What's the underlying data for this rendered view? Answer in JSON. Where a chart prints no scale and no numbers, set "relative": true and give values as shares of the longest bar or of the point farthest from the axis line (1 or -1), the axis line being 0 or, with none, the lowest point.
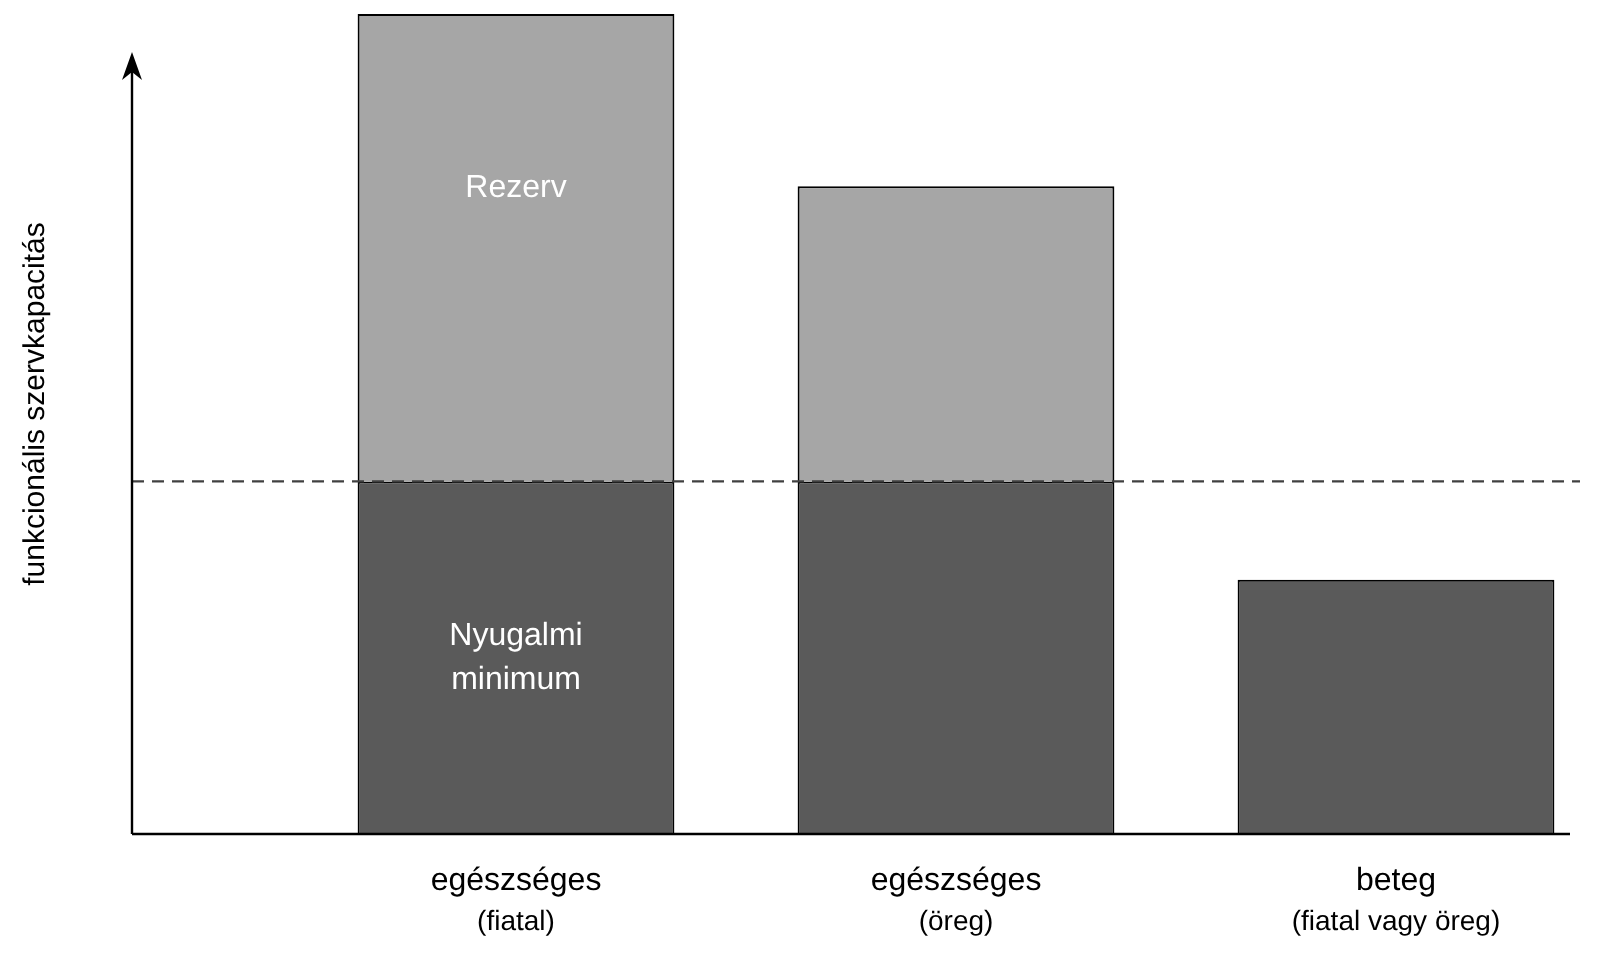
{
  "chart_data": {
    "type": "bar",
    "stacked": true,
    "relative": true,
    "ylabel": "funkcionális szervkapacitás",
    "categories": [
      "egészséges\n(fiatal)",
      "egészséges\n(öreg)",
      "beteg\n(fiatal vagy öreg)"
    ],
    "series": [
      {
        "name": "Nyugalmi minimum",
        "color": "#5a5a5a",
        "values": [
          0.43,
          0.43,
          0.31
        ]
      },
      {
        "name": "Rezerv",
        "color": "#a6a6a6",
        "values": [
          0.57,
          0.36,
          null
        ]
      }
    ],
    "ref_lines": [
      {
        "axis": "y",
        "value": 0.43,
        "line_style": "dashed",
        "color": "#404040"
      }
    ],
    "legend": false
  }
}
